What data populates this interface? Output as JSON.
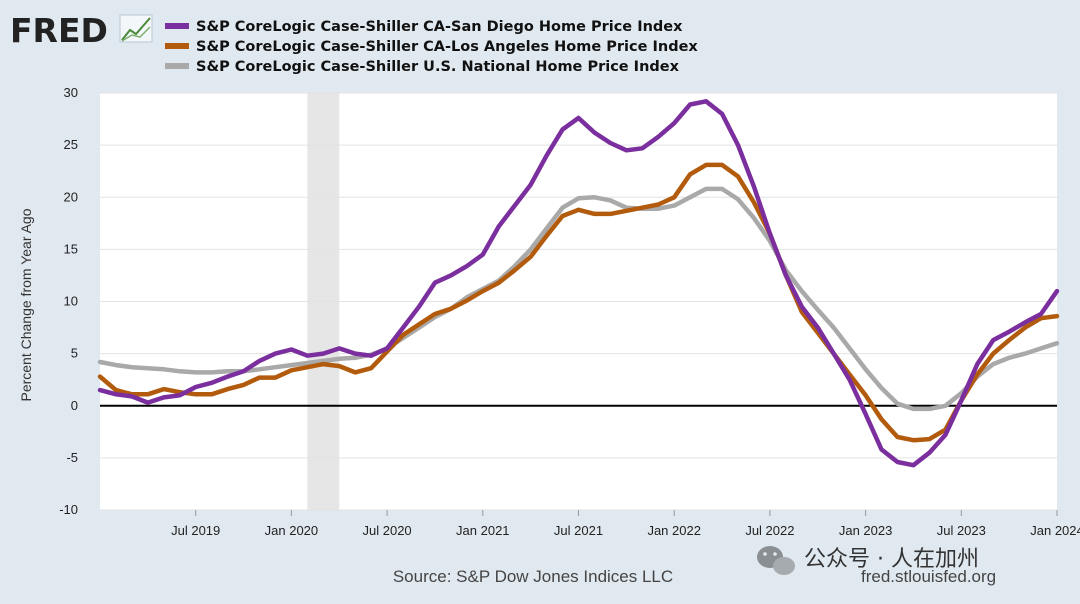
{
  "logo": {
    "text": "FRED"
  },
  "source": "Source: S&P Dow Jones Indices LLC",
  "site": "fred.stlouisfed.org",
  "watermark": "公众号 · 人在加州",
  "colors": {
    "background": "#e1e9f0",
    "plot": "#ffffff",
    "recession": "#e6e6e6"
  },
  "chart_data": {
    "type": "line",
    "ylabel": "Percent Change from Year Ago",
    "ylim": [
      -10,
      30
    ],
    "yticks": [
      30,
      25,
      20,
      15,
      10,
      5,
      0,
      -5,
      -10
    ],
    "xlim": [
      "2019-01",
      "2024-01"
    ],
    "xticks": [
      "Jul 2019",
      "Jan 2020",
      "Jul 2020",
      "Jan 2021",
      "Jul 2021",
      "Jan 2022",
      "Jul 2022",
      "Jan 2023",
      "Jul 2023",
      "Jan 2024"
    ],
    "xtick_dates": [
      "2019-07",
      "2020-01",
      "2020-07",
      "2021-01",
      "2021-07",
      "2022-01",
      "2022-07",
      "2023-01",
      "2023-07",
      "2024-01"
    ],
    "recession": [
      "2020-02",
      "2020-04"
    ],
    "x": [
      "2019-01",
      "2019-02",
      "2019-03",
      "2019-04",
      "2019-05",
      "2019-06",
      "2019-07",
      "2019-08",
      "2019-09",
      "2019-10",
      "2019-11",
      "2019-12",
      "2020-01",
      "2020-02",
      "2020-03",
      "2020-04",
      "2020-05",
      "2020-06",
      "2020-07",
      "2020-08",
      "2020-09",
      "2020-10",
      "2020-11",
      "2020-12",
      "2021-01",
      "2021-02",
      "2021-03",
      "2021-04",
      "2021-05",
      "2021-06",
      "2021-07",
      "2021-08",
      "2021-09",
      "2021-10",
      "2021-11",
      "2021-12",
      "2022-01",
      "2022-02",
      "2022-03",
      "2022-04",
      "2022-05",
      "2022-06",
      "2022-07",
      "2022-08",
      "2022-09",
      "2022-10",
      "2022-11",
      "2022-12",
      "2023-01",
      "2023-02",
      "2023-03",
      "2023-04",
      "2023-05",
      "2023-06",
      "2023-07",
      "2023-08",
      "2023-09",
      "2023-10",
      "2023-11",
      "2023-12",
      "2024-01"
    ],
    "series": [
      {
        "name": "S&P CoreLogic Case-Shiller CA-San Diego Home Price Index",
        "color": "#7b2f9e",
        "values": [
          1.5,
          1.1,
          0.9,
          0.3,
          0.8,
          1.0,
          1.8,
          2.2,
          2.8,
          3.3,
          4.3,
          5.0,
          5.4,
          4.8,
          5.0,
          5.5,
          5.0,
          4.8,
          5.5,
          7.5,
          9.5,
          11.8,
          12.5,
          13.4,
          14.5,
          17.2,
          19.2,
          21.2,
          24.0,
          26.5,
          27.6,
          26.2,
          25.2,
          24.5,
          24.7,
          25.8,
          27.1,
          28.9,
          29.2,
          28.0,
          25.0,
          21.0,
          16.5,
          12.5,
          9.5,
          7.5,
          5.0,
          2.5,
          -0.8,
          -4.2,
          -5.4,
          -5.7,
          -4.5,
          -2.8,
          0.5,
          4.0,
          6.3,
          7.1,
          8.0,
          8.8,
          11.0
        ]
      },
      {
        "name": "S&P CoreLogic Case-Shiller CA-Los Angeles Home Price Index",
        "color": "#b35b0d",
        "values": [
          2.8,
          1.5,
          1.1,
          1.1,
          1.6,
          1.3,
          1.1,
          1.1,
          1.6,
          2.0,
          2.7,
          2.7,
          3.4,
          3.7,
          4.0,
          3.8,
          3.2,
          3.6,
          5.2,
          6.8,
          7.8,
          8.8,
          9.3,
          10.1,
          11.0,
          11.8,
          13.0,
          14.3,
          16.3,
          18.2,
          18.8,
          18.4,
          18.4,
          18.7,
          19.0,
          19.3,
          20.0,
          22.2,
          23.1,
          23.1,
          22.0,
          19.5,
          16.5,
          12.5,
          9.0,
          7.0,
          5.0,
          3.0,
          1.0,
          -1.3,
          -3.0,
          -3.3,
          -3.2,
          -2.3,
          0.5,
          3.0,
          5.0,
          6.3,
          7.5,
          8.4,
          8.6
        ]
      },
      {
        "name": "S&P CoreLogic Case-Shiller U.S. National Home Price Index",
        "color": "#a9a9a9",
        "values": [
          4.2,
          3.9,
          3.7,
          3.6,
          3.5,
          3.3,
          3.2,
          3.2,
          3.3,
          3.3,
          3.5,
          3.7,
          3.9,
          4.1,
          4.3,
          4.5,
          4.6,
          4.9,
          5.5,
          6.5,
          7.5,
          8.5,
          9.3,
          10.4,
          11.2,
          12.0,
          13.4,
          15.0,
          17.0,
          19.0,
          19.9,
          20.0,
          19.7,
          19.0,
          18.9,
          18.9,
          19.2,
          20.0,
          20.8,
          20.8,
          19.8,
          18.0,
          15.8,
          13.0,
          11.0,
          9.2,
          7.5,
          5.5,
          3.5,
          1.7,
          0.2,
          -0.3,
          -0.3,
          0.0,
          1.2,
          2.8,
          4.0,
          4.6,
          5.0,
          5.5,
          6.0
        ]
      }
    ]
  }
}
